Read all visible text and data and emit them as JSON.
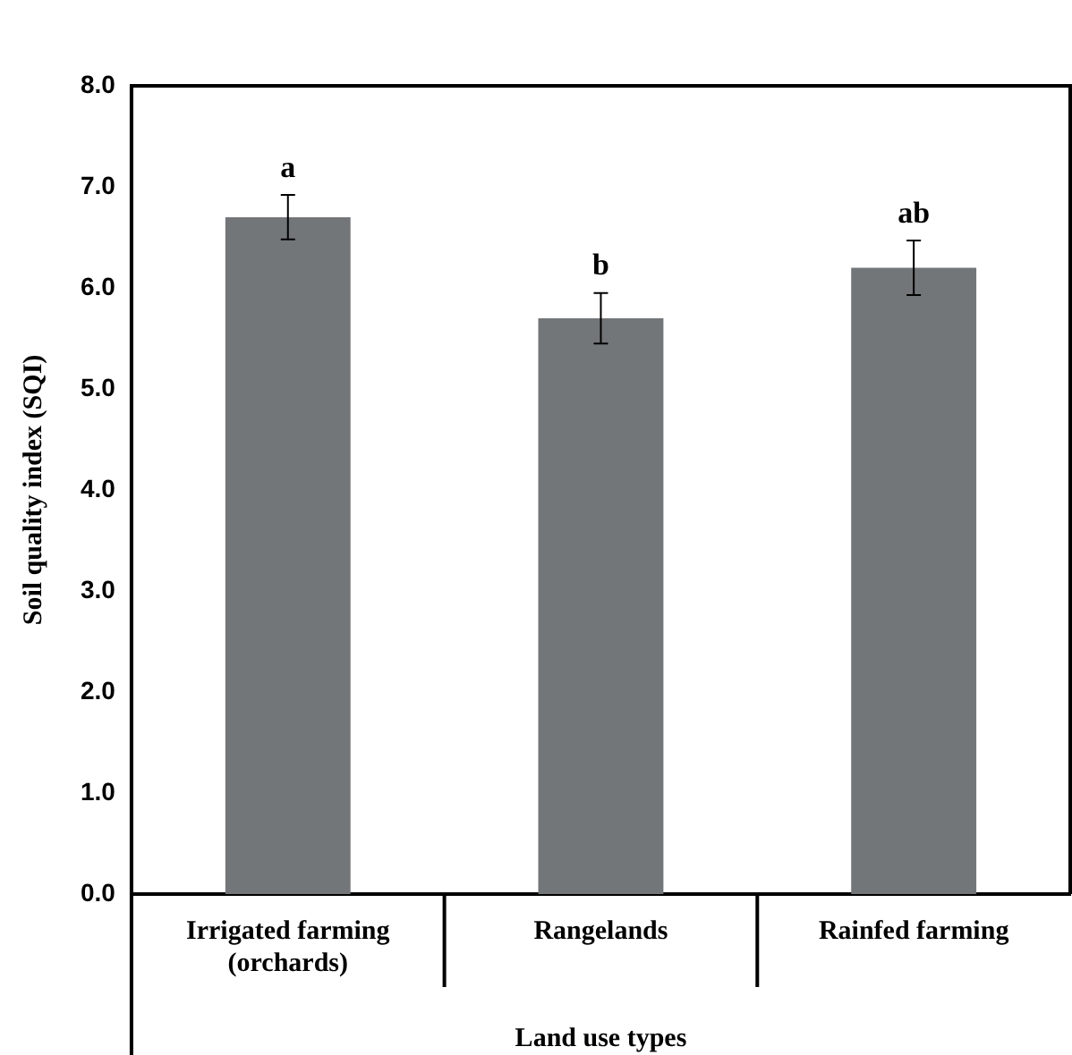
{
  "chart_data": {
    "type": "bar",
    "xlabel": "Land use types",
    "ylabel": "Soil quality index (SQI)",
    "categories": [
      "Irrigated farming (orchards)",
      "Rangelands",
      "Rainfed farming"
    ],
    "values": [
      6.7,
      5.7,
      6.2
    ],
    "errors": [
      0.22,
      0.25,
      0.27
    ],
    "color": "#737678",
    "ylim": [
      0,
      8
    ],
    "yticks": [
      {
        "value": 0,
        "label": "0.0"
      },
      {
        "value": 1,
        "label": "1.0"
      },
      {
        "value": 2,
        "label": "2.0"
      },
      {
        "value": 3,
        "label": "3.0"
      },
      {
        "value": 4,
        "label": "4.0"
      },
      {
        "value": 5,
        "label": "5.0"
      },
      {
        "value": 6,
        "label": "6.0"
      },
      {
        "value": 7,
        "label": "7.0"
      },
      {
        "value": 8,
        "label": "8.0"
      }
    ],
    "grid": false,
    "legend": false,
    "annotations": [
      {
        "text": "a",
        "x": "Irrigated farming (orchards)",
        "y": 6.92
      },
      {
        "text": "b",
        "x": "Rangelands",
        "y": 5.95
      },
      {
        "text": "ab",
        "x": "Rainfed farming",
        "y": 6.47
      }
    ]
  }
}
